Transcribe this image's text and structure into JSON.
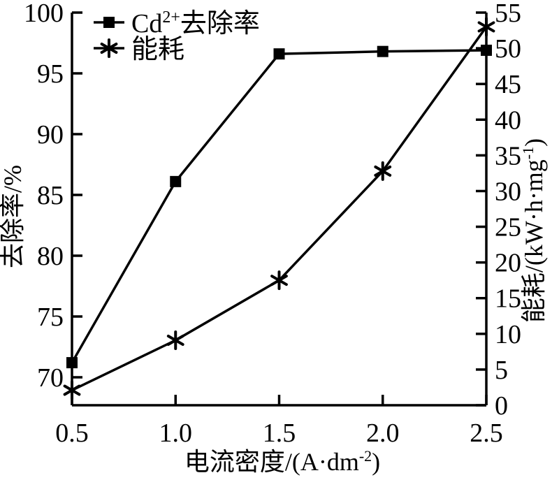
{
  "figure": {
    "background": "#ffffff",
    "ink": "#000000"
  },
  "chart_data": {
    "type": "line",
    "x": [
      0.5,
      1.0,
      1.5,
      2.0,
      2.5
    ],
    "x_tick_labels": [
      "0.5",
      "1.0",
      "1.5",
      "2.0",
      "2.5"
    ],
    "xlim": [
      0.5,
      2.5
    ],
    "xlabel_parts": [
      {
        "t": "电流密度/(A·dm"
      },
      {
        "t": "-2",
        "sup": true
      },
      {
        "t": ")"
      }
    ],
    "left_axis": {
      "label_parts": [
        {
          "t": "去除率/%"
        }
      ],
      "ticks": [
        70,
        75,
        80,
        85,
        90,
        95,
        100
      ],
      "range": [
        67.7,
        100
      ]
    },
    "right_axis": {
      "label_parts": [
        {
          "t": "能耗/(kW·h·mg"
        },
        {
          "t": "-1",
          "sup": true
        },
        {
          "t": ")"
        }
      ],
      "ticks": [
        0,
        5,
        10,
        15,
        20,
        25,
        30,
        35,
        40,
        45,
        50,
        55
      ],
      "range": [
        0,
        55
      ]
    },
    "series": [
      {
        "id": "cd-removal-rate",
        "name_parts": [
          {
            "t": "Cd"
          },
          {
            "t": "2+",
            "sup": true
          },
          {
            "t": "去除率"
          }
        ],
        "marker": "square",
        "axis": "left",
        "values": [
          71.2,
          86.1,
          96.6,
          96.8,
          96.9
        ]
      },
      {
        "id": "energy-consumption",
        "name_parts": [
          {
            "t": "能耗"
          }
        ],
        "marker": "asterisk",
        "axis": "right",
        "values": [
          2.1,
          9.1,
          17.5,
          32.8,
          53.0
        ]
      }
    ],
    "legend_position": "top-left",
    "grid": false
  }
}
